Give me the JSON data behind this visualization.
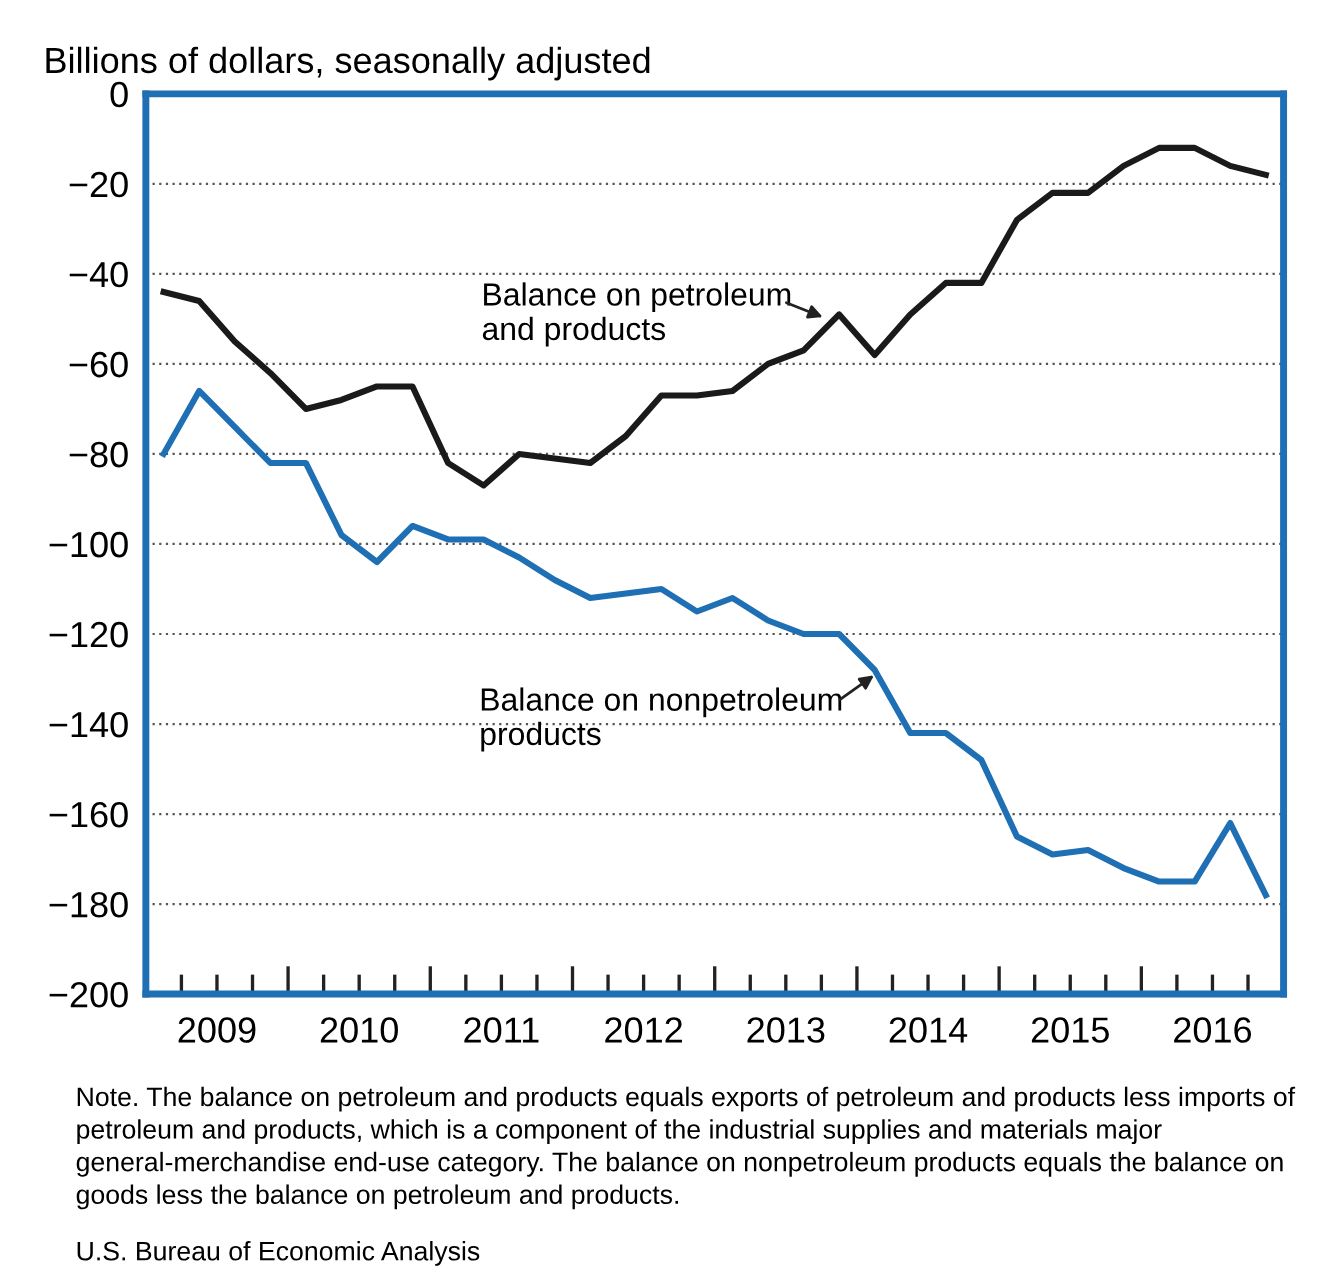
{
  "chart_data": {
    "type": "line",
    "ylabel": "Billions of dollars, seasonally adjusted",
    "x": [
      2009.125,
      2009.375,
      2009.625,
      2009.875,
      2010.125,
      2010.375,
      2010.625,
      2010.875,
      2011.125,
      2011.375,
      2011.625,
      2011.875,
      2012.125,
      2012.375,
      2012.625,
      2012.875,
      2013.125,
      2013.375,
      2013.625,
      2013.875,
      2014.125,
      2014.375,
      2014.625,
      2014.875,
      2015.125,
      2015.375,
      2015.625,
      2015.875,
      2016.125,
      2016.375,
      2016.625,
      2016.875
    ],
    "series": [
      {
        "color": "#1a1a1a",
        "values": [
          -44,
          -46,
          -55,
          -62,
          -70,
          -68,
          -65,
          -65,
          -82,
          -87,
          -80,
          -81,
          -82,
          -76,
          -67,
          -67,
          -66,
          -60,
          -57,
          -49,
          -58,
          -49,
          -42,
          -42,
          -28,
          -22,
          -22,
          -16,
          -12,
          -12,
          -16,
          -18
        ]
      },
      {
        "color": "#1f6fb4",
        "values": [
          -80,
          -66,
          -74,
          -82,
          -82,
          -98,
          -104,
          -96,
          -99,
          -99,
          -103,
          -108,
          -112,
          -111,
          -110,
          -115,
          -112,
          -117,
          -120,
          -120,
          -128,
          -142,
          -142,
          -148,
          -165,
          -169,
          -168,
          -172,
          -175,
          -175,
          -162,
          -178
        ]
      }
    ],
    "xlim": [
      2009,
      2017
    ],
    "xticks": [
      {
        "value": 2009.5,
        "label": "2009"
      },
      {
        "value": 2010.5,
        "label": "2010"
      },
      {
        "value": 2011.5,
        "label": "2011"
      },
      {
        "value": 2012.5,
        "label": "2012"
      },
      {
        "value": 2013.5,
        "label": "2013"
      },
      {
        "value": 2014.5,
        "label": "2014"
      },
      {
        "value": 2015.5,
        "label": "2015"
      },
      {
        "value": 2016.5,
        "label": "2016"
      },
      {
        "value": 2009.25,
        "label": null
      },
      {
        "value": 2009.5,
        "label": null
      },
      {
        "value": 2009.75,
        "label": null
      },
      {
        "value": 2010,
        "label": null
      },
      {
        "value": 2010.25,
        "label": null
      },
      {
        "value": 2010.5,
        "label": null
      },
      {
        "value": 2010.75,
        "label": null
      },
      {
        "value": 2011,
        "label": null
      },
      {
        "value": 2011.25,
        "label": null
      },
      {
        "value": 2011.5,
        "label": null
      },
      {
        "value": 2011.75,
        "label": null
      },
      {
        "value": 2012,
        "label": null
      },
      {
        "value": 2012.25,
        "label": null
      },
      {
        "value": 2012.5,
        "label": null
      },
      {
        "value": 2012.75,
        "label": null
      },
      {
        "value": 2013,
        "label": null
      },
      {
        "value": 2013.25,
        "label": null
      },
      {
        "value": 2013.5,
        "label": null
      },
      {
        "value": 2013.75,
        "label": null
      },
      {
        "value": 2014,
        "label": null
      },
      {
        "value": 2014.25,
        "label": null
      },
      {
        "value": 2014.5,
        "label": null
      },
      {
        "value": 2014.75,
        "label": null
      },
      {
        "value": 2015,
        "label": null
      },
      {
        "value": 2015.25,
        "label": null
      },
      {
        "value": 2015.5,
        "label": null
      },
      {
        "value": 2015.75,
        "label": null
      },
      {
        "value": 2016,
        "label": null
      },
      {
        "value": 2016.25,
        "label": null
      },
      {
        "value": 2016.5,
        "label": null
      },
      {
        "value": 2016.75,
        "label": null
      }
    ],
    "ylim": [
      -200,
      0
    ],
    "yticks": [
      -200,
      -180,
      -160,
      -140,
      -120,
      -100,
      -80,
      -60,
      -40,
      -20,
      0
    ],
    "grid": "y",
    "line_style": "solid",
    "annotations": [
      "Balance on petroleum\nand products",
      "Balance on nonpetroleum\nproducts",
      "Note. The balance on petroleum and products equals exports of petroleum and products less imports of petroleum and products, which is a component of the industrial supplies and materials major general-merchandise end-use category. The balance on nonpetroleum products equals the balance on goods less the balance on petroleum and products.",
      "U.S. Bureau of Economic Analysis"
    ]
  }
}
